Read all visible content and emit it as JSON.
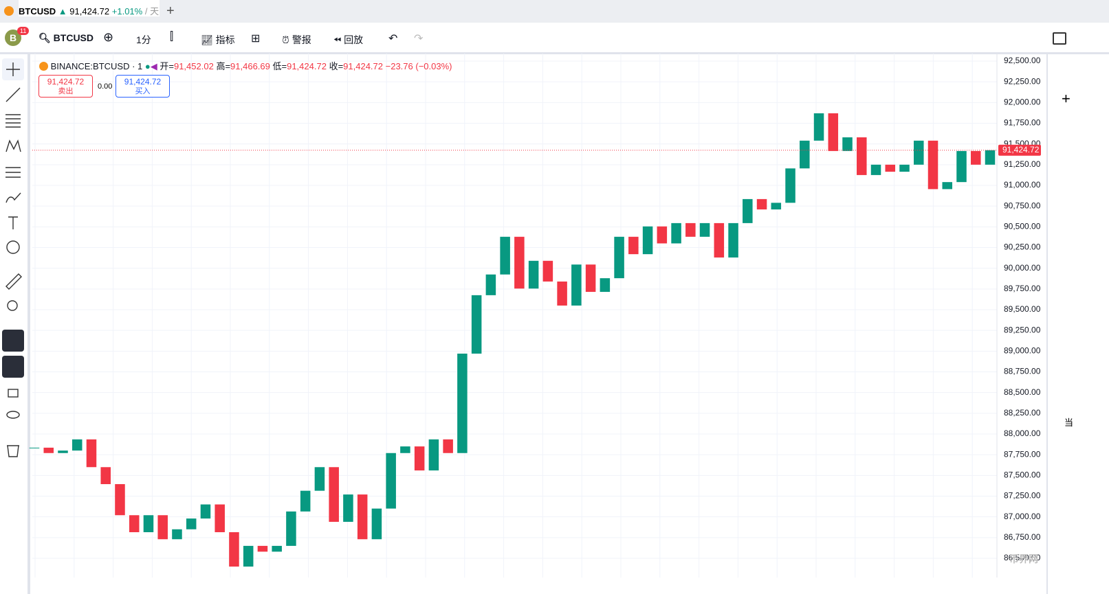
{
  "ui": {
    "tab": {
      "symbol": "BTCUSD",
      "price": "91,424.72",
      "change": "+1.01%",
      "extra": "/ 天"
    },
    "toolbar": {
      "badge": "11",
      "symbol": "BTCUSD",
      "interval": "1分",
      "indicators": "指标",
      "alerts": "警报",
      "replay": "回放"
    },
    "legend": {
      "name": "BINANCE:BTCUSD · 1",
      "o_label": "开=",
      "o": "91,452.02",
      "h_label": "高=",
      "h": "91,466.69",
      "l_label": "低=",
      "l": "91,424.72",
      "c_label": "收=",
      "c": "91,424.72",
      "change": "−23.76 (−0.03%)"
    },
    "trade": {
      "sell_price": "91,424.72",
      "sell": "卖出",
      "spread": "0.00",
      "buy_price": "91,424.72",
      "buy": "买入"
    },
    "side": "当",
    "watermark": "币界网"
  },
  "chart_data": {
    "type": "candlestick",
    "up_color": "#089981",
    "down_color": "#f23645",
    "grid": true,
    "values": [
      87835,
      87770,
      87800,
      87935,
      87600,
      87395,
      87020,
      86815,
      87020,
      86730,
      86850,
      86980,
      87150,
      86815,
      86400,
      86650,
      86580,
      86650,
      87065,
      87315,
      87600,
      86940,
      87270,
      86730,
      87100,
      87770,
      87850,
      87560,
      87935,
      87770,
      88970,
      89675,
      89925,
      90380,
      89755,
      90090,
      89840,
      89550,
      90045,
      89715,
      89880,
      90380,
      90170,
      90505,
      90300,
      90545,
      90380,
      90545,
      90130,
      90545,
      90835,
      90710,
      90790,
      91205,
      91540,
      91870,
      91415,
      91580,
      91125,
      91250,
      91165,
      91250,
      91540,
      90955,
      91040,
      91415,
      91250,
      91424.72
    ],
    "last_label": "91,424.72",
    "ylim": [
      86268,
      92591
    ],
    "yticks": [
      {
        "value": 86500,
        "label": "86,500.00"
      },
      {
        "value": 86750,
        "label": "86,750.00"
      },
      {
        "value": 87000,
        "label": "87,000.00"
      },
      {
        "value": 87250,
        "label": "87,250.00"
      },
      {
        "value": 87500,
        "label": "87,500.00"
      },
      {
        "value": 87750,
        "label": "87,750.00"
      },
      {
        "value": 88000,
        "label": "88,000.00"
      },
      {
        "value": 88250,
        "label": "88,250.00"
      },
      {
        "value": 88500,
        "label": "88,500.00"
      },
      {
        "value": 88750,
        "label": "88,750.00"
      },
      {
        "value": 89000,
        "label": "89,000.00"
      },
      {
        "value": 89250,
        "label": "89,250.00"
      },
      {
        "value": 89500,
        "label": "89,500.00"
      },
      {
        "value": 89750,
        "label": "89,750.00"
      },
      {
        "value": 90000,
        "label": "90,000.00"
      },
      {
        "value": 90250,
        "label": "90,250.00"
      },
      {
        "value": 90500,
        "label": "90,500.00"
      },
      {
        "value": 90750,
        "label": "90,750.00"
      },
      {
        "value": 91000,
        "label": "91,000.00"
      },
      {
        "value": 91250,
        "label": "91,250.00"
      },
      {
        "value": 91500,
        "label": "91,500.00"
      },
      {
        "value": 91750,
        "label": "91,750.00"
      },
      {
        "value": 92000,
        "label": "92,000.00"
      },
      {
        "value": 92250,
        "label": "92,250.00"
      },
      {
        "value": 92500,
        "label": "92,500.00"
      }
    ]
  }
}
